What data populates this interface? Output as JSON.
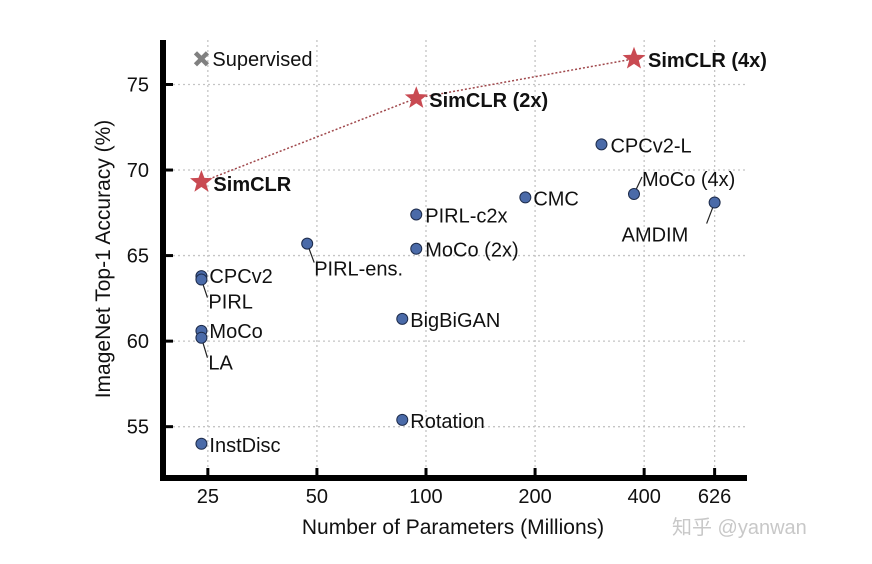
{
  "chart_data": {
    "type": "scatter",
    "xlabel": "Number of Parameters (Millions)",
    "ylabel": "ImageNet Top-1 Accuracy (%)",
    "x_scale": "log",
    "xlim": [
      18.8,
      769
    ],
    "ylim": [
      52.0,
      77.6
    ],
    "x_ticks": [
      25,
      50,
      100,
      200,
      400,
      626
    ],
    "x_tick_labels": [
      "25",
      "50",
      "100",
      "200",
      "400",
      "626"
    ],
    "y_ticks": [
      55,
      60,
      65,
      70,
      75
    ],
    "y_tick_labels": [
      "55",
      "60",
      "65",
      "70",
      "75"
    ],
    "grid": true,
    "colors": {
      "simclr": "#c94a52",
      "others": "#4a6aa8",
      "supervised": "#808080",
      "link_line": "#a0484c"
    },
    "points": [
      {
        "name": "Supervised",
        "x": 24,
        "y": 76.5,
        "marker": "cross",
        "group": "supervised"
      },
      {
        "name": "SimCLR",
        "x": 24,
        "y": 69.3,
        "marker": "star",
        "group": "simclr"
      },
      {
        "name": "SimCLR (2x)",
        "x": 94,
        "y": 74.2,
        "marker": "star",
        "group": "simclr"
      },
      {
        "name": "SimCLR (4x)",
        "x": 375,
        "y": 76.5,
        "marker": "star",
        "group": "simclr"
      },
      {
        "name": "CPCv2-L",
        "x": 305,
        "y": 71.5,
        "marker": "circle",
        "group": "others"
      },
      {
        "name": "MoCo (4x)",
        "x": 375,
        "y": 68.6,
        "marker": "circle",
        "group": "others"
      },
      {
        "name": "AMDIM",
        "x": 626,
        "y": 68.1,
        "marker": "circle",
        "group": "others"
      },
      {
        "name": "CMC",
        "x": 188,
        "y": 68.4,
        "marker": "circle",
        "group": "others"
      },
      {
        "name": "PIRL-c2x",
        "x": 94,
        "y": 67.4,
        "marker": "circle",
        "group": "others"
      },
      {
        "name": "MoCo (2x)",
        "x": 94,
        "y": 65.4,
        "marker": "circle",
        "group": "others"
      },
      {
        "name": "PIRL-ens.",
        "x": 47,
        "y": 65.7,
        "marker": "circle",
        "group": "others"
      },
      {
        "name": "CPCv2",
        "x": 24,
        "y": 63.8,
        "marker": "circle",
        "group": "others"
      },
      {
        "name": "PIRL",
        "x": 24,
        "y": 63.6,
        "marker": "circle",
        "group": "others"
      },
      {
        "name": "MoCo",
        "x": 24,
        "y": 60.6,
        "marker": "circle",
        "group": "others"
      },
      {
        "name": "LA",
        "x": 24,
        "y": 60.2,
        "marker": "circle",
        "group": "others"
      },
      {
        "name": "BigBiGAN",
        "x": 86,
        "y": 61.3,
        "marker": "circle",
        "group": "others"
      },
      {
        "name": "Rotation",
        "x": 86,
        "y": 55.4,
        "marker": "circle",
        "group": "others"
      },
      {
        "name": "InstDisc",
        "x": 24,
        "y": 54.0,
        "marker": "circle",
        "group": "others"
      }
    ]
  },
  "watermark": "知乎 @yanwan"
}
